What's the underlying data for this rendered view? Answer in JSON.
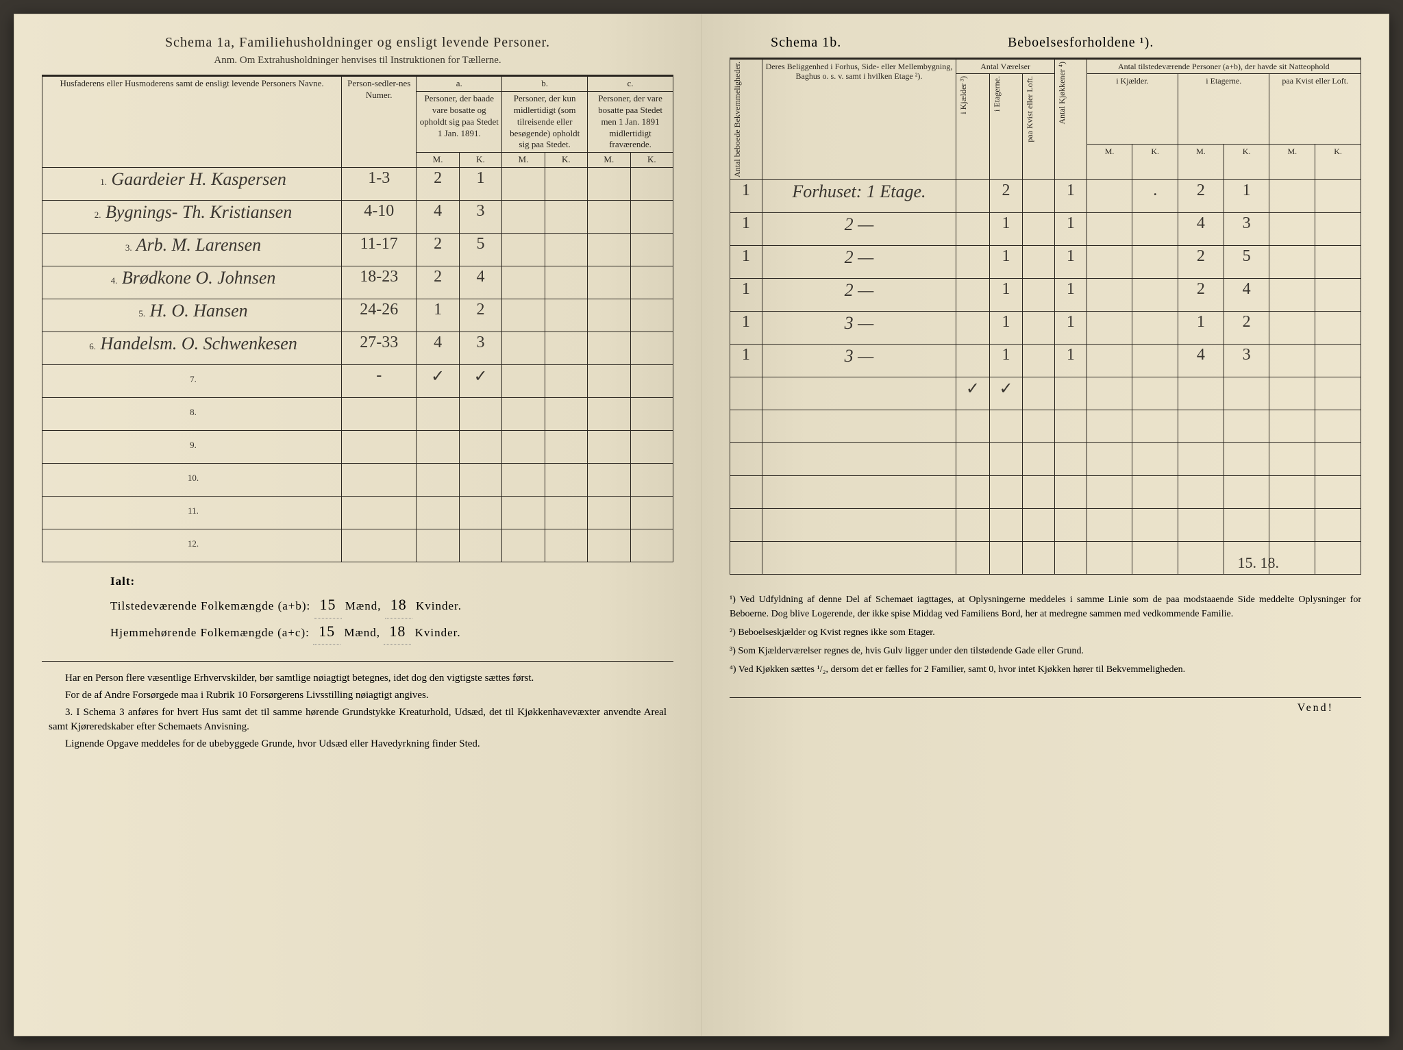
{
  "left": {
    "title": "Schema 1a,  Familiehusholdninger og ensligt levende Personer.",
    "subtitle": "Anm. Om Extrahusholdninger henvises til Instruktionen for Tællerne.",
    "headers": {
      "name": "Husfaderens eller Husmoderens samt de ensligt levende Personers Navne.",
      "numer": "Person-sedler-nes Numer.",
      "a_label": "a.",
      "a_text": "Personer, der baade vare bosatte og opholdt sig paa Stedet 1 Jan. 1891.",
      "b_label": "b.",
      "b_text": "Personer, der kun midlertidigt (som tilreisende eller besøgende) opholdt sig paa Stedet.",
      "c_label": "c.",
      "c_text": "Personer, der vare bosatte paa Stedet men 1 Jan. 1891 midlertidigt fraværende.",
      "m": "M.",
      "k": "K."
    },
    "rows": [
      {
        "n": "1.",
        "name": "Gaardeier H. Kaspersen",
        "num": "1-3",
        "am": "2",
        "ak": "1",
        "bm": "",
        "bk": "",
        "cm": "",
        "ck": ""
      },
      {
        "n": "2.",
        "name": "Bygnings- Th. Kristiansen",
        "num": "4-10",
        "am": "4",
        "ak": "3",
        "bm": "",
        "bk": "",
        "cm": "",
        "ck": ""
      },
      {
        "n": "3.",
        "name": "Arb. M. Larensen",
        "num": "11-17",
        "am": "2",
        "ak": "5",
        "bm": "",
        "bk": "",
        "cm": "",
        "ck": ""
      },
      {
        "n": "4.",
        "name": "Brødkone O. Johnsen",
        "num": "18-23",
        "am": "2",
        "ak": "4",
        "bm": "",
        "bk": "",
        "cm": "",
        "ck": ""
      },
      {
        "n": "5.",
        "name": "H. O. Hansen",
        "num": "24-26",
        "am": "1",
        "ak": "2",
        "bm": "",
        "bk": "",
        "cm": "",
        "ck": ""
      },
      {
        "n": "6.",
        "name": "Handelsm. O. Schwenkesen",
        "num": "27-33",
        "am": "4",
        "ak": "3",
        "bm": "",
        "bk": "",
        "cm": "",
        "ck": ""
      },
      {
        "n": "7.",
        "name": "",
        "num": "-",
        "am": "✓",
        "ak": "✓",
        "bm": "",
        "bk": "",
        "cm": "",
        "ck": ""
      },
      {
        "n": "8.",
        "name": "",
        "num": "",
        "am": "",
        "ak": "",
        "bm": "",
        "bk": "",
        "cm": "",
        "ck": ""
      },
      {
        "n": "9.",
        "name": "",
        "num": "",
        "am": "",
        "ak": "",
        "bm": "",
        "bk": "",
        "cm": "",
        "ck": ""
      },
      {
        "n": "10.",
        "name": "",
        "num": "",
        "am": "",
        "ak": "",
        "bm": "",
        "bk": "",
        "cm": "",
        "ck": ""
      },
      {
        "n": "11.",
        "name": "",
        "num": "",
        "am": "",
        "ak": "",
        "bm": "",
        "bk": "",
        "cm": "",
        "ck": ""
      },
      {
        "n": "12.",
        "name": "",
        "num": "",
        "am": "",
        "ak": "",
        "bm": "",
        "bk": "",
        "cm": "",
        "ck": ""
      }
    ],
    "totals": {
      "ialt": "Ialt:",
      "line1_lbl": "Tilstedeværende Folkemængde (a+b):",
      "line1_m": "15",
      "line1_mu": "Mænd,",
      "line1_k": "18",
      "line1_ku": "Kvinder.",
      "line2_lbl": "Hjemmehørende Folkemængde (a+c):",
      "line2_m": "15",
      "line2_k": "18"
    },
    "instructions": [
      "Har en Person flere væsentlige Erhvervskilder, bør samtlige nøiagtigt betegnes, idet dog den vigtigste sættes først.",
      "For de af Andre Forsørgede maa i Rubrik 10 Forsørgerens Livsstilling nøiagtigt angives.",
      "3.  I Schema 3 anføres for hvert Hus samt det til samme hørende Grundstykke Kreaturhold, Udsæd, det til Kjøkkenhavevæxter anvendte Areal samt Kjøreredskaber efter Schemaets Anvisning.",
      "Lignende Opgave meddeles for de ubebyggede Grunde, hvor Udsæd eller Havedyrkning finder Sted."
    ]
  },
  "right": {
    "title_left": "Schema 1b.",
    "title_right": "Beboelsesforholdene ¹).",
    "headers": {
      "bekv": "Antal beboede Bekvemmeligheder.",
      "loc": "Deres Beliggenhed i Forhus, Side- eller Mellembygning, Baghus o. s. v. samt i hvilken Etage ²).",
      "vaer": "Antal Værelser",
      "kjael": "i Kjælder ³)",
      "etag": "i Etagerne.",
      "kvist": "paa Kvist eller Loft.",
      "kjok": "Antal Kjøkkener ⁴)",
      "tilst": "Antal tilstedeværende Personer (a+b), der havde sit Natteophold",
      "ikjael": "i Kjælder.",
      "ietag": "i Etagerne.",
      "pkvist": "paa Kvist eller Loft.",
      "m": "M.",
      "k": "K."
    },
    "rows": [
      {
        "bk": "1",
        "loc": "Forhuset: 1 Etage.",
        "k": "",
        "e": "2",
        "kv": "",
        "kj": "1",
        "km": "",
        "kk": ".",
        "em": "2",
        "ek": "1",
        "lm": "",
        "lk": ""
      },
      {
        "bk": "1",
        "loc": "2 —",
        "k": "",
        "e": "1",
        "kv": "",
        "kj": "1",
        "km": "",
        "kk": "",
        "em": "4",
        "ek": "3",
        "lm": "",
        "lk": ""
      },
      {
        "bk": "1",
        "loc": "2 —",
        "k": "",
        "e": "1",
        "kv": "",
        "kj": "1",
        "km": "",
        "kk": "",
        "em": "2",
        "ek": "5",
        "lm": "",
        "lk": ""
      },
      {
        "bk": "1",
        "loc": "2 —",
        "k": "",
        "e": "1",
        "kv": "",
        "kj": "1",
        "km": "",
        "kk": "",
        "em": "2",
        "ek": "4",
        "lm": "",
        "lk": ""
      },
      {
        "bk": "1",
        "loc": "3 —",
        "k": "",
        "e": "1",
        "kv": "",
        "kj": "1",
        "km": "",
        "kk": "",
        "em": "1",
        "ek": "2",
        "lm": "",
        "lk": ""
      },
      {
        "bk": "1",
        "loc": "3 —",
        "k": "",
        "e": "1",
        "kv": "",
        "kj": "1",
        "km": "",
        "kk": "",
        "em": "4",
        "ek": "3",
        "lm": "",
        "lk": ""
      },
      {
        "bk": "",
        "loc": "",
        "k": "✓",
        "e": "✓",
        "kv": "",
        "kj": "",
        "km": "",
        "kk": "",
        "em": "",
        "ek": "",
        "lm": "",
        "lk": ""
      },
      {
        "bk": "",
        "loc": "",
        "k": "",
        "e": "",
        "kv": "",
        "kj": "",
        "km": "",
        "kk": "",
        "em": "",
        "ek": "",
        "lm": "",
        "lk": ""
      },
      {
        "bk": "",
        "loc": "",
        "k": "",
        "e": "",
        "kv": "",
        "kj": "",
        "km": "",
        "kk": "",
        "em": "",
        "ek": "",
        "lm": "",
        "lk": ""
      },
      {
        "bk": "",
        "loc": "",
        "k": "",
        "e": "",
        "kv": "",
        "kj": "",
        "km": "",
        "kk": "",
        "em": "",
        "ek": "",
        "lm": "",
        "lk": ""
      },
      {
        "bk": "",
        "loc": "",
        "k": "",
        "e": "",
        "kv": "",
        "kj": "",
        "km": "",
        "kk": "",
        "em": "",
        "ek": "",
        "lm": "",
        "lk": ""
      },
      {
        "bk": "",
        "loc": "",
        "k": "",
        "e": "",
        "kv": "",
        "kj": "",
        "km": "",
        "kk": "",
        "em": "",
        "ek": "",
        "lm": "",
        "lk": ""
      }
    ],
    "hw_total": "15.  18.",
    "footnotes": [
      "¹) Ved Udfyldning af denne Del af Schemaet iagttages, at Oplysningerne meddeles i samme Linie som de paa modstaaende Side meddelte Oplysninger for Beboerne. Dog blive Logerende, der ikke spise Middag ved Familiens Bord, her at medregne sammen med vedkommende Familie.",
      "²) Beboelseskjælder og Kvist regnes ikke som Etager.",
      "³) Som Kjælderværelser regnes de, hvis Gulv ligger under den tilstødende Gade eller Grund.",
      "⁴) Ved Kjøkken sættes ¹/₂, dersom det er fælles for 2 Familier, samt 0, hvor intet Kjøkken hører til Bekvemmeligheden."
    ],
    "vend": "Vend!"
  }
}
